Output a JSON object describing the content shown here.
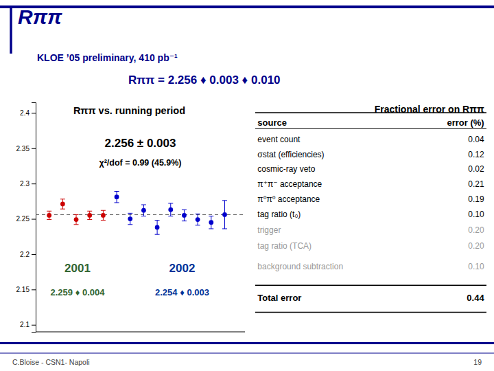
{
  "title": "Rππ",
  "subtitle": "KLOE ’05 preliminary, 410 pb⁻¹",
  "annotations": [
    "Rππ = 2.256 ♦ 0.003 ♦ 0.010"
  ],
  "footer": [
    "C.Bloise - CSN1- Napoli",
    "19"
  ],
  "color": "#00008B",
  "chart_data": [
    {
      "type": "scatter",
      "title": "Rππ vs. running period",
      "xlim": [
        0,
        15.5
      ],
      "ylim": [
        2.09,
        2.415
      ],
      "yticks": [
        2.1,
        2.15,
        2.2,
        2.25,
        2.3,
        2.35,
        2.4
      ],
      "tick_labels": "y",
      "series": [
        {
          "color": "#cc0000",
          "marker": "circle",
          "x": [
            1,
            2,
            3,
            4,
            5
          ],
          "values": [
            2.255,
            2.271,
            2.249,
            2.255,
            2.255
          ],
          "errors": [
            0.006,
            0.007,
            0.007,
            0.006,
            0.007
          ]
        },
        {
          "color": "#0000cc",
          "marker": "circle",
          "x": [
            6,
            7,
            8,
            9,
            10,
            11,
            12,
            13,
            14
          ],
          "values": [
            2.281,
            2.25,
            2.262,
            2.238,
            2.263,
            2.255,
            2.249,
            2.245,
            2.256
          ],
          "errors": [
            0.008,
            0.008,
            0.008,
            0.01,
            0.009,
            0.008,
            0.008,
            0.009,
            0.02
          ]
        }
      ],
      "reference_line": {
        "value": 2.256,
        "line_style": "dashed"
      },
      "annotations": [
        {
          "text": "2.256 ± 0.003"
        },
        {
          "text": "χ²/dof = 0.99 (45.9%)"
        },
        {
          "text": "2001",
          "color": "#336633"
        },
        {
          "text": "2.259 ♦ 0.004",
          "color": "#336633"
        },
        {
          "text": "2002",
          "color": "#003399"
        },
        {
          "text": "2.254 ♦ 0.003",
          "color": "#003399"
        }
      ]
    },
    {
      "type": "table",
      "title": "Fractional error on Rππ",
      "columns": [
        "source",
        "error (%)"
      ],
      "categories": [
        "event count",
        "σstat (efficiencies)",
        "cosmic-ray veto",
        "π⁺π⁻ acceptance",
        "π⁰π⁰ acceptance",
        "tag ratio (t₀)",
        "trigger",
        "tag ratio (TCA)",
        "background subtraction",
        "Total error"
      ],
      "values": [
        0.04,
        0.12,
        0.02,
        0.21,
        0.19,
        0.1,
        0.2,
        0.2,
        0.1,
        0.44
      ],
      "value_labels": [
        "0.04",
        "0.12",
        "0.02",
        "0.21",
        "0.19",
        "0.10",
        "0.20",
        "0.20",
        "0.10",
        "0.44"
      ],
      "colors": [
        "#000000",
        "#000000",
        "#000000",
        "#000000",
        "#000000",
        "#000000",
        "#999999",
        "#999999",
        "#999999",
        "#000000"
      ]
    }
  ]
}
